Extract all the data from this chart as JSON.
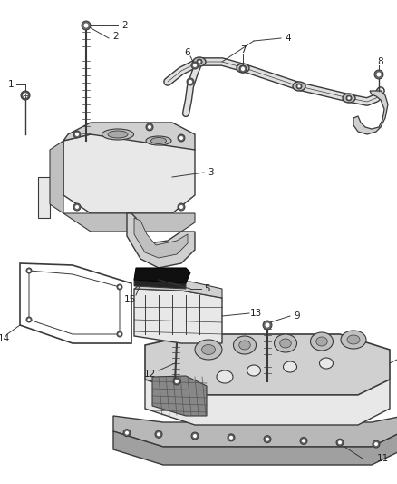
{
  "background_color": "#ffffff",
  "figsize": [
    4.38,
    5.33
  ],
  "dpi": 100,
  "line_color": "#3a3a3a",
  "part_fill": "#e8e8e8",
  "part_fill2": "#d0d0d0",
  "part_fill3": "#c0c0c0",
  "dark_fill": "#a8a8a8",
  "gasket_fill": "#1a1a1a",
  "label_fs": 7.5
}
